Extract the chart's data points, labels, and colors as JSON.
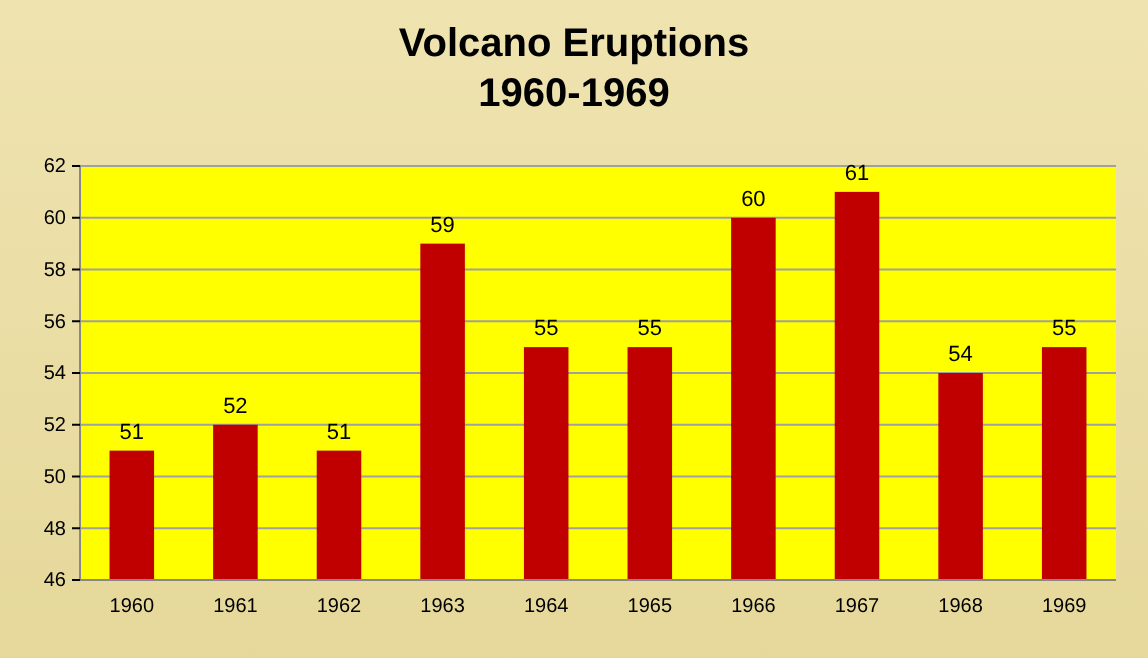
{
  "chart_data": {
    "type": "bar",
    "title": "Volcano Eruptions",
    "subtitle": "1960-1969",
    "categories": [
      "1960",
      "1961",
      "1962",
      "1963",
      "1964",
      "1965",
      "1966",
      "1967",
      "1968",
      "1969"
    ],
    "values": [
      51,
      52,
      51,
      59,
      55,
      55,
      60,
      61,
      54,
      55
    ],
    "color": "#c00000",
    "ylim": [
      46,
      62
    ],
    "yticks": [
      46,
      48,
      50,
      52,
      54,
      56,
      58,
      60,
      62
    ],
    "grid": "y",
    "data_labels": true
  }
}
